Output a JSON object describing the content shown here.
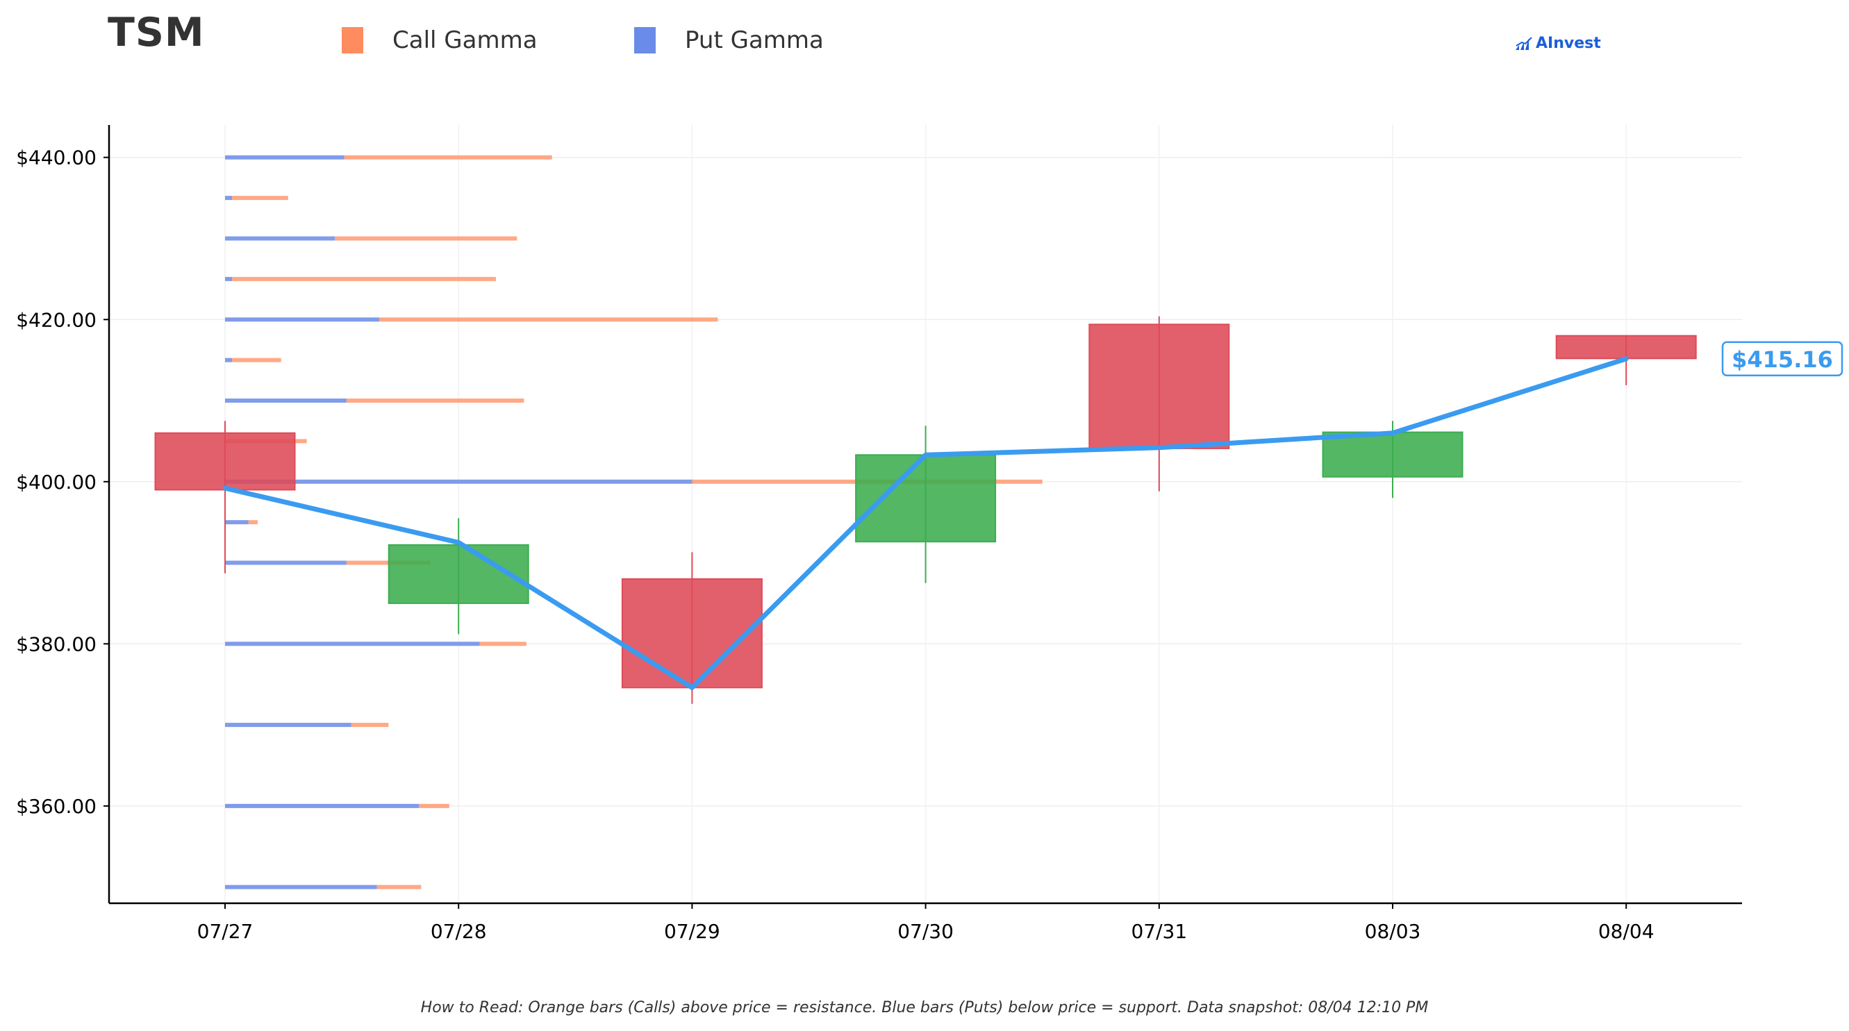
{
  "header": {
    "ticker": "TSM",
    "legend": [
      {
        "label": "Call Gamma",
        "color": "#ff8c5e"
      },
      {
        "label": "Put Gamma",
        "color": "#6a8be8"
      }
    ],
    "brand": "AInvest"
  },
  "footnote": "How to Read: Orange bars (Calls) above price = resistance. Blue bars (Puts) below price = support. Data snapshot: 08/04 12:10 PM",
  "chart_data": {
    "type": "candlestick",
    "categories": [
      "07/27",
      "07/28",
      "07/29",
      "07/30",
      "07/31",
      "08/03",
      "08/04"
    ],
    "ylim": [
      348,
      444
    ],
    "yticks": [
      360,
      380,
      400,
      420,
      440
    ],
    "ytick_labels": [
      "$360.00",
      "$380.00",
      "$400.00",
      "$420.00",
      "$440.00"
    ],
    "grid": true,
    "colors": {
      "up": "#3cad4f",
      "down": "#de4a58",
      "line": "#3a9bf0",
      "call": "#ff8c5e",
      "put": "#6a8be8"
    },
    "candles": [
      {
        "date": "07/27",
        "open": 406.0,
        "high": 407.5,
        "low": 388.7,
        "close": 399.0
      },
      {
        "date": "07/28",
        "open": 385.0,
        "high": 395.5,
        "low": 381.2,
        "close": 392.2
      },
      {
        "date": "07/29",
        "open": 388.0,
        "high": 391.3,
        "low": 372.6,
        "close": 374.6
      },
      {
        "date": "07/30",
        "open": 392.6,
        "high": 406.9,
        "low": 387.5,
        "close": 403.3
      },
      {
        "date": "07/31",
        "open": 419.4,
        "high": 420.4,
        "low": 398.8,
        "close": 404.1
      },
      {
        "date": "08/03",
        "open": 400.6,
        "high": 407.5,
        "low": 398.0,
        "close": 406.1
      },
      {
        "date": "08/04",
        "open": 418.0,
        "high": 418.0,
        "low": 411.9,
        "close": 415.2
      }
    ],
    "line": {
      "values": [
        399.2,
        392.5,
        374.6,
        403.3,
        404.2,
        406.0,
        415.16
      ]
    },
    "last_price_label": "$415.16",
    "gamma_exposure": {
      "note": "put and call gamma per strike, shown in day widths from the 07/27 axis",
      "strikes": [
        440,
        435,
        430,
        425,
        420,
        415,
        410,
        405,
        400,
        395,
        390,
        380,
        370,
        360,
        350
      ],
      "put": [
        0.51,
        0.03,
        0.47,
        0.03,
        0.66,
        0.03,
        0.52,
        0.0,
        2.0,
        0.1,
        0.52,
        1.09,
        0.54,
        0.83,
        0.65
      ],
      "call": [
        0.89,
        0.24,
        0.78,
        1.13,
        1.45,
        0.21,
        0.76,
        0.35,
        1.5,
        0.04,
        0.36,
        0.2,
        0.16,
        0.13,
        0.19
      ]
    }
  }
}
